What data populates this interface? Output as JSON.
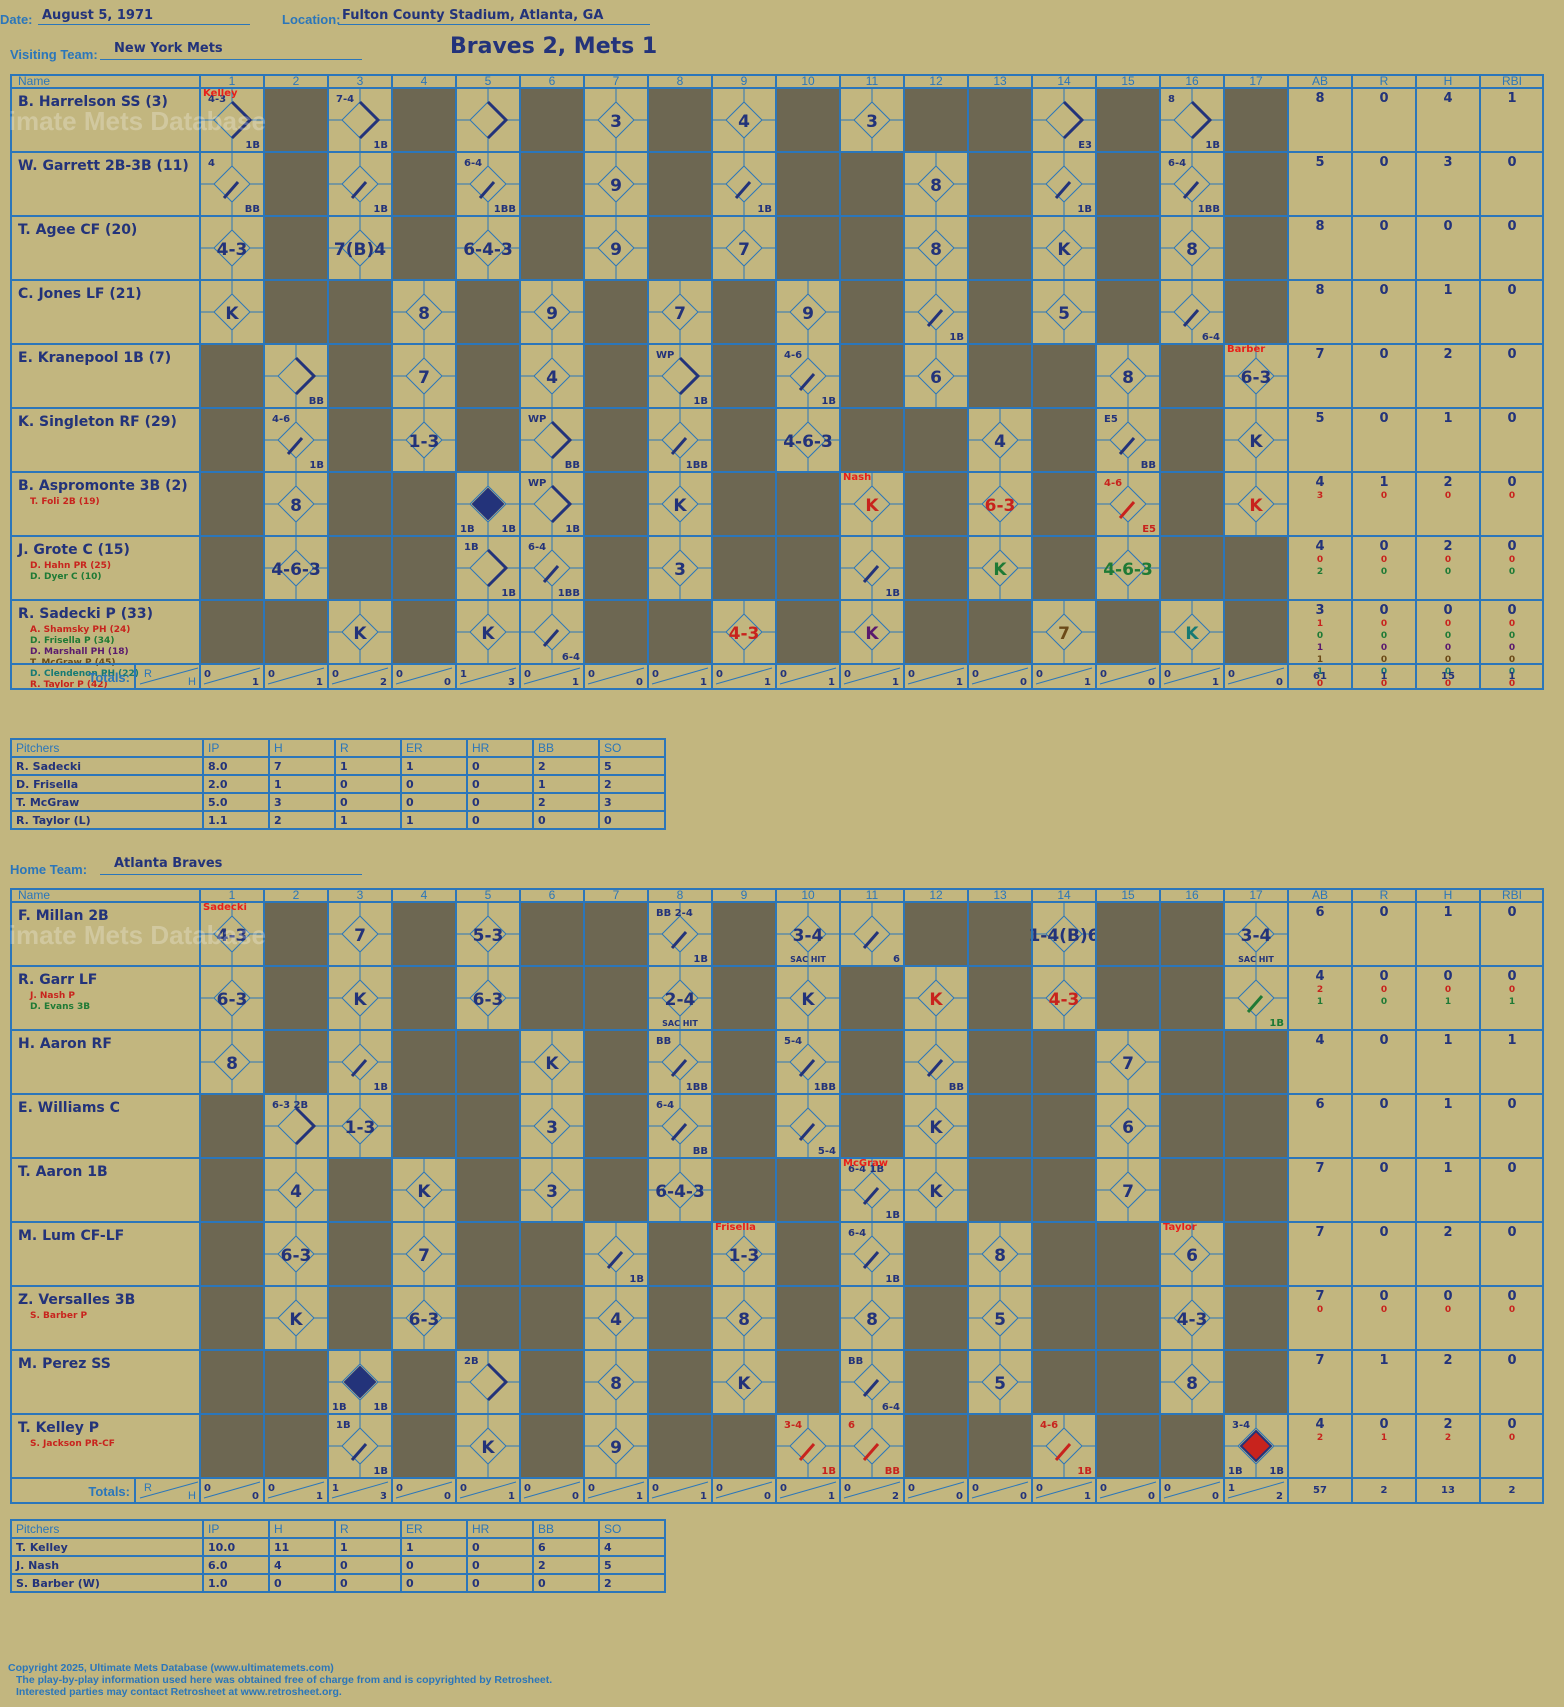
{
  "header": {
    "date_label": "Date:",
    "date": "August 5, 1971",
    "location_label": "Location:",
    "location": "Fulton County Stadium, Atlanta, GA",
    "visiting_label": "Visiting Team:",
    "visiting_team": "New York Mets",
    "home_label": "Home Team:",
    "home_team": "Atlanta Braves",
    "result": "Braves 2, Mets 1"
  },
  "watermark": "Ultimate Mets Database",
  "col_headers": {
    "name": "Name",
    "innings": [
      "1",
      "2",
      "3",
      "4",
      "5",
      "6",
      "7",
      "8",
      "9",
      "10",
      "11",
      "12",
      "13",
      "14",
      "15",
      "16",
      "17"
    ],
    "stats": [
      "AB",
      "R",
      "H",
      "RBI"
    ]
  },
  "totals_label": "Totals:",
  "rh_labels": [
    "R",
    "H"
  ],
  "visitors": {
    "rows": [
      {
        "name": "B. Harrelson SS (3)",
        "subs": [],
        "stats": [
          [
            "8",
            "0",
            "4",
            "1"
          ]
        ]
      },
      {
        "name": "W. Garrett 2B-3B (11)",
        "subs": [],
        "stats": [
          [
            "5",
            "0",
            "3",
            "0"
          ]
        ]
      },
      {
        "name": "T. Agee CF (20)",
        "subs": [],
        "stats": [
          [
            "8",
            "0",
            "0",
            "0"
          ]
        ]
      },
      {
        "name": "C. Jones LF (21)",
        "subs": [],
        "stats": [
          [
            "8",
            "0",
            "1",
            "0"
          ]
        ]
      },
      {
        "name": "E. Kranepool 1B (7)",
        "subs": [],
        "stats": [
          [
            "7",
            "0",
            "2",
            "0"
          ]
        ]
      },
      {
        "name": "K. Singleton RF (29)",
        "subs": [],
        "stats": [
          [
            "5",
            "0",
            "1",
            "0"
          ]
        ]
      },
      {
        "name": "B. Aspromonte 3B (2)",
        "subs": [
          {
            "t": "T. Foli 2B (19)",
            "c": "#c8231d"
          }
        ],
        "stats": [
          [
            "4",
            "1",
            "2",
            "0"
          ],
          [
            "3",
            "0",
            "0",
            "0"
          ]
        ]
      },
      {
        "name": "J. Grote C (15)",
        "subs": [
          {
            "t": "D. Hahn PR (25)",
            "c": "#c8231d"
          },
          {
            "t": "D. Dyer C (10)",
            "c": "#1f7a35"
          }
        ],
        "stats": [
          [
            "4",
            "0",
            "2",
            "0"
          ],
          [
            "0",
            "0",
            "0",
            "0"
          ],
          [
            "2",
            "0",
            "0",
            "0"
          ]
        ]
      },
      {
        "name": "R. Sadecki P (33)",
        "subs": [
          {
            "t": "A. Shamsky PH (24)",
            "c": "#c8231d"
          },
          {
            "t": "D. Frisella P (34)",
            "c": "#1f7a35"
          },
          {
            "t": "D. Marshall PH (18)",
            "c": "#5a1a6e"
          },
          {
            "t": "T. McGraw P (45)",
            "c": "#6b4a18"
          },
          {
            "t": "D. Clendenon PH (22)",
            "c": "#167a74"
          },
          {
            "t": "R. Taylor P (42)",
            "c": "#c8231d"
          }
        ],
        "stats": [
          [
            "3",
            "0",
            "0",
            "0"
          ],
          [
            "1",
            "0",
            "0",
            "0"
          ],
          [
            "0",
            "0",
            "0",
            "0"
          ],
          [
            "1",
            "0",
            "0",
            "0"
          ],
          [
            "1",
            "0",
            "0",
            "0"
          ],
          [
            "1",
            "0",
            "0",
            "0"
          ],
          [
            "0",
            "0",
            "0",
            "0"
          ]
        ]
      }
    ],
    "cells": [
      [
        {
          "t": "4-3",
          "top": "Kelley",
          "d": "1B",
          "b": "1B"
        },
        null,
        {
          "t": "7-4",
          "d": "1B",
          "b": "1B"
        },
        null,
        {
          "d": "1B"
        },
        null,
        {
          "t": "3"
        },
        null,
        {
          "t": "4"
        },
        null,
        {
          "t": "3"
        },
        null,
        null,
        {
          "d": "1B",
          "b": "E3"
        },
        null,
        {
          "t": "8",
          "d": "1B",
          "b": "1B"
        },
        null
      ],
      [
        {
          "t": "4",
          "b": "BB"
        },
        null,
        {
          "b": "1B"
        },
        null,
        {
          "t": "6-4",
          "b": "1BB"
        },
        null,
        {
          "t": "9"
        },
        null,
        {
          "b": "1B"
        },
        null,
        null,
        {
          "t": "8"
        },
        null,
        {
          "b": "1B"
        },
        null,
        {
          "t": "6-4",
          "b": "1BB"
        },
        null
      ],
      [
        {
          "t": "4-3"
        },
        null,
        {
          "t": "7(B)4"
        },
        null,
        {
          "t": "6-4-3"
        },
        null,
        {
          "t": "9"
        },
        null,
        {
          "t": "7"
        },
        null,
        null,
        {
          "t": "8"
        },
        null,
        {
          "t": "K"
        },
        null,
        {
          "t": "8"
        },
        null
      ],
      [
        {
          "t": "K"
        },
        null,
        null,
        {
          "t": "8"
        },
        null,
        {
          "t": "9"
        },
        null,
        {
          "t": "7"
        },
        null,
        {
          "t": "9"
        },
        null,
        {
          "b": "1B"
        },
        null,
        {
          "t": "5"
        },
        null,
        {
          "b": "6-4"
        },
        null
      ],
      [
        null,
        {
          "d": "1B",
          "b": "BB"
        },
        null,
        {
          "t": "7"
        },
        null,
        {
          "t": "4"
        },
        null,
        {
          "t": "WP",
          "d": "1B",
          "b": "1B"
        },
        null,
        {
          "t": "4-6",
          "b": "1B"
        },
        null,
        {
          "t": "6"
        },
        null,
        null,
        {
          "t": "8"
        },
        null,
        {
          "t": "6-3",
          "top": "Barber"
        }
      ],
      [
        null,
        {
          "t": "4-6",
          "b": "1B"
        },
        null,
        {
          "t": "1-3"
        },
        null,
        {
          "t": "WP",
          "d": "1B",
          "b": "BB"
        },
        null,
        {
          "b": "1BB"
        },
        null,
        {
          "t": "4-6-3"
        },
        null,
        null,
        {
          "t": "4"
        },
        null,
        {
          "t": "E5",
          "d": "",
          "b": "BB"
        },
        null,
        {
          "t": "K"
        }
      ],
      [
        null,
        {
          "t": "8"
        },
        null,
        null,
        {
          "run": "#23337a",
          "d": "1B",
          "b": "1B",
          "l": "1B"
        },
        {
          "t": "WP",
          "d": "1B",
          "b": "1B"
        },
        null,
        {
          "t": "K"
        },
        null,
        null,
        {
          "t": "K",
          "c": "#c8231d",
          "top": "Nash"
        },
        null,
        {
          "t": "6-3",
          "c": "#c8231d"
        },
        null,
        {
          "t": "4-6",
          "b": "E5",
          "c": "#c8231d"
        },
        null,
        {
          "t": "K",
          "c": "#c8231d"
        }
      ],
      [
        null,
        {
          "t": "4-6-3"
        },
        null,
        null,
        {
          "t": "1B",
          "d": "1B",
          "b": "1B"
        },
        {
          "t": "6-4",
          "b": "1BB"
        },
        null,
        {
          "t": "3"
        },
        null,
        null,
        {
          "b": "1B"
        },
        null,
        {
          "t": "K",
          "c": "#1f7a35"
        },
        null,
        {
          "t": "4-6-3",
          "c": "#1f7a35"
        },
        null,
        null
      ],
      [
        null,
        null,
        {
          "t": "K"
        },
        null,
        {
          "t": "K"
        },
        {
          "b": "6-4"
        },
        null,
        null,
        {
          "t": "4-3",
          "c": "#c8231d"
        },
        null,
        {
          "t": "K",
          "c": "#5a1a6e"
        },
        null,
        null,
        {
          "t": "7",
          "c": "#6b4a18"
        },
        null,
        {
          "t": "K",
          "c": "#167a74"
        },
        null
      ]
    ],
    "totals": [
      [
        "0",
        "1"
      ],
      [
        "0",
        "1"
      ],
      [
        "0",
        "2"
      ],
      [
        "0",
        "0"
      ],
      [
        "1",
        "3"
      ],
      [
        "0",
        "1"
      ],
      [
        "0",
        "0"
      ],
      [
        "0",
        "1"
      ],
      [
        "0",
        "1"
      ],
      [
        "0",
        "1"
      ],
      [
        "0",
        "1"
      ],
      [
        "0",
        "1"
      ],
      [
        "0",
        "0"
      ],
      [
        "0",
        "1"
      ],
      [
        "0",
        "0"
      ],
      [
        "0",
        "1"
      ],
      [
        "0",
        "0"
      ]
    ],
    "stat_totals": [
      "61",
      "1",
      "15",
      "1"
    ]
  },
  "home": {
    "rows": [
      {
        "name": "F. Millan 2B",
        "subs": [],
        "stats": [
          [
            "6",
            "0",
            "1",
            "0"
          ]
        ]
      },
      {
        "name": "R. Garr LF",
        "subs": [
          {
            "t": "J. Nash P",
            "c": "#c8231d"
          },
          {
            "t": "D. Evans 3B",
            "c": "#1f7a35"
          }
        ],
        "stats": [
          [
            "4",
            "0",
            "0",
            "0"
          ],
          [
            "2",
            "0",
            "0",
            "0"
          ],
          [
            "1",
            "0",
            "1",
            "1"
          ]
        ]
      },
      {
        "name": "H. Aaron RF",
        "subs": [],
        "stats": [
          [
            "4",
            "0",
            "1",
            "1"
          ]
        ]
      },
      {
        "name": "E. Williams C",
        "subs": [],
        "stats": [
          [
            "6",
            "0",
            "1",
            "0"
          ]
        ]
      },
      {
        "name": "T. Aaron 1B",
        "subs": [],
        "stats": [
          [
            "7",
            "0",
            "1",
            "0"
          ]
        ]
      },
      {
        "name": "M. Lum CF-LF",
        "subs": [],
        "stats": [
          [
            "7",
            "0",
            "2",
            "0"
          ]
        ]
      },
      {
        "name": "Z. Versalles 3B",
        "subs": [
          {
            "t": "S. Barber P",
            "c": "#c8231d"
          }
        ],
        "stats": [
          [
            "7",
            "0",
            "0",
            "0"
          ],
          [
            "0",
            "0",
            "0",
            "0"
          ]
        ]
      },
      {
        "name": "M. Perez SS",
        "subs": [],
        "stats": [
          [
            "7",
            "1",
            "2",
            "0"
          ]
        ]
      },
      {
        "name": "T. Kelley P",
        "subs": [
          {
            "t": "S. Jackson PR-CF",
            "c": "#c8231d"
          }
        ],
        "stats": [
          [
            "4",
            "0",
            "2",
            "0"
          ],
          [
            "2",
            "1",
            "2",
            "0"
          ]
        ]
      }
    ],
    "cells": [
      [
        {
          "t": "4-3",
          "top": "Sadecki"
        },
        null,
        {
          "t": "7"
        },
        null,
        {
          "t": "5-3"
        },
        null,
        null,
        {
          "t": "BB 2-4",
          "b": "1B"
        },
        null,
        {
          "t": "3-4",
          "s": "SAC HIT"
        },
        {
          "b": "6"
        },
        null,
        null,
        {
          "t": "1-4(B)6"
        },
        null,
        null,
        {
          "t": "3-4",
          "s": "SAC HIT"
        }
      ],
      [
        {
          "t": "6-3"
        },
        null,
        {
          "t": "K"
        },
        null,
        {
          "t": "6-3"
        },
        null,
        null,
        {
          "t": "2-4",
          "s": "SAC HIT"
        },
        null,
        {
          "t": "K"
        },
        null,
        {
          "t": "K",
          "c": "#c8231d"
        },
        null,
        {
          "t": "4-3",
          "c": "#c8231d"
        },
        null,
        null,
        {
          "b": "1B",
          "c": "#1f7a35"
        }
      ],
      [
        {
          "t": "8"
        },
        null,
        {
          "b": "1B"
        },
        null,
        null,
        {
          "t": "K"
        },
        null,
        {
          "t": "BB",
          "b": "1BB"
        },
        null,
        {
          "t": "5-4",
          "b": "1BB"
        },
        null,
        {
          "b": "BB"
        },
        null,
        null,
        {
          "t": "7"
        },
        null,
        null
      ],
      [
        null,
        {
          "t": "6-3 2B",
          "d": "2B"
        },
        {
          "t": "1-3"
        },
        null,
        null,
        {
          "t": "3"
        },
        null,
        {
          "t": "6-4",
          "b": "BB"
        },
        null,
        {
          "b": "5-4"
        },
        null,
        {
          "t": "K"
        },
        null,
        null,
        {
          "t": "6"
        },
        null,
        null
      ],
      [
        null,
        {
          "t": "4"
        },
        null,
        {
          "t": "K"
        },
        null,
        {
          "t": "3"
        },
        null,
        {
          "t": "6-4-3"
        },
        null,
        null,
        {
          "t": "6-4 1B",
          "top": "McGraw",
          "b": "1B"
        },
        {
          "t": "K"
        },
        null,
        null,
        {
          "t": "7"
        },
        null,
        null
      ],
      [
        null,
        {
          "t": "6-3"
        },
        null,
        {
          "t": "7"
        },
        null,
        null,
        {
          "b": "1B"
        },
        null,
        {
          "t": "1-3",
          "top": "Frisella"
        },
        null,
        {
          "t": "6-4",
          "b": "1B"
        },
        null,
        {
          "t": "8"
        },
        null,
        null,
        {
          "t": "6",
          "top": "Taylor"
        },
        null
      ],
      [
        null,
        {
          "t": "K"
        },
        null,
        {
          "t": "6-3"
        },
        null,
        null,
        {
          "t": "4"
        },
        null,
        {
          "t": "8"
        },
        null,
        {
          "t": "8"
        },
        null,
        {
          "t": "5"
        },
        null,
        null,
        {
          "t": "4-3"
        },
        null
      ],
      [
        null,
        null,
        {
          "run": "#23337a",
          "d": "1B",
          "b": "1B",
          "l": "1B"
        },
        null,
        {
          "t": "2B",
          "d": "2B"
        },
        null,
        {
          "t": "8"
        },
        null,
        {
          "t": "K"
        },
        null,
        {
          "t": "BB",
          "b": "6-4"
        },
        null,
        {
          "t": "5"
        },
        null,
        null,
        {
          "t": "8"
        },
        null
      ],
      [
        null,
        null,
        {
          "t": "1B",
          "b": "1B"
        },
        null,
        {
          "t": "K"
        },
        null,
        {
          "t": "9"
        },
        null,
        null,
        {
          "t": "3-4",
          "b": "1B",
          "c": "#c8231d"
        },
        {
          "t": "6",
          "b": "BB",
          "c": "#c8231d"
        },
        null,
        null,
        {
          "t": "4-6",
          "b": "1B",
          "c": "#c8231d"
        },
        null,
        null,
        {
          "run": "#c8231d",
          "t": "3-4",
          "b": "1B",
          "l": "1B"
        }
      ]
    ],
    "totals": [
      [
        "0",
        "0"
      ],
      [
        "0",
        "1"
      ],
      [
        "1",
        "3"
      ],
      [
        "0",
        "0"
      ],
      [
        "0",
        "1"
      ],
      [
        "0",
        "0"
      ],
      [
        "0",
        "1"
      ],
      [
        "0",
        "1"
      ],
      [
        "0",
        "0"
      ],
      [
        "0",
        "1"
      ],
      [
        "0",
        "2"
      ],
      [
        "0",
        "0"
      ],
      [
        "0",
        "0"
      ],
      [
        "0",
        "1"
      ],
      [
        "0",
        "0"
      ],
      [
        "0",
        "0"
      ],
      [
        "1",
        "2"
      ]
    ],
    "stat_totals": [
      "57",
      "2",
      "13",
      "2"
    ]
  },
  "visitor_pitchers": {
    "headers": [
      "Pitchers",
      "IP",
      "H",
      "R",
      "ER",
      "HR",
      "BB",
      "SO"
    ],
    "rows": [
      [
        "R. Sadecki",
        "8.0",
        "7",
        "1",
        "1",
        "0",
        "2",
        "5"
      ],
      [
        "D. Frisella",
        "2.0",
        "1",
        "0",
        "0",
        "0",
        "1",
        "2"
      ],
      [
        "T. McGraw",
        "5.0",
        "3",
        "0",
        "0",
        "0",
        "2",
        "3"
      ],
      [
        "R. Taylor (L)",
        "1.1",
        "2",
        "1",
        "1",
        "0",
        "0",
        "0"
      ]
    ]
  },
  "home_pitchers": {
    "headers": [
      "Pitchers",
      "IP",
      "H",
      "R",
      "ER",
      "HR",
      "BB",
      "SO"
    ],
    "rows": [
      [
        "T. Kelley",
        "10.0",
        "11",
        "1",
        "1",
        "0",
        "6",
        "4"
      ],
      [
        "J. Nash",
        "6.0",
        "4",
        "0",
        "0",
        "0",
        "2",
        "5"
      ],
      [
        "S. Barber (W)",
        "1.0",
        "0",
        "0",
        "0",
        "0",
        "0",
        "2"
      ]
    ]
  },
  "footer": {
    "line1": "Copyright 2025, Ultimate Mets Database (www.ultimatemets.com)",
    "line2": "The play-by-play information used here was obtained free of charge from and is copyrighted by Retrosheet.",
    "line3": "Interested parties may contact Retrosheet at www.retrosheet.org."
  },
  "colors": {
    "bg": "#c2b67f",
    "grid": "#2b76ba",
    "dark": "#6d6752",
    "ink": "#23337a"
  }
}
